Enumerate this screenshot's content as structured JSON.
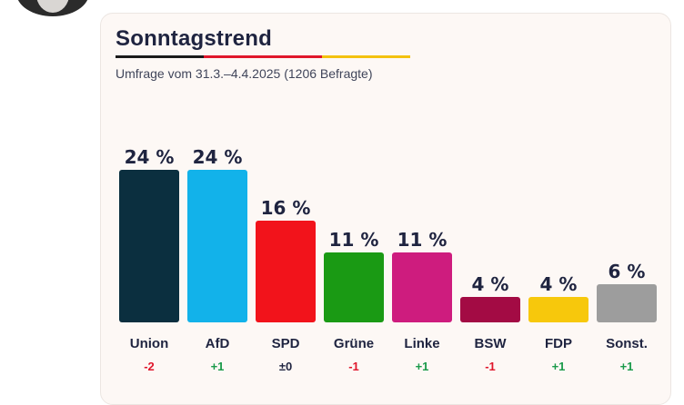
{
  "header": {
    "avatar_icon": "user-avatar-icon"
  },
  "card": {
    "title": "Sonntagstrend",
    "subtitle": "Umfrage vom 31.3.–4.4.2025 (1206 Befragte)"
  },
  "chart_data": {
    "type": "bar",
    "title": "Sonntagstrend",
    "subtitle": "Umfrage vom 31.3.–4.4.2025 (1206 Befragte)",
    "ylim": [
      0,
      24
    ],
    "grid": false,
    "categories": [
      "Union",
      "AfD",
      "SPD",
      "Grüne",
      "Linke",
      "BSW",
      "FDP",
      "Sonst."
    ],
    "values": [
      24,
      24,
      16,
      11,
      11,
      4,
      4,
      6
    ],
    "value_labels": [
      "24 %",
      "24 %",
      "16 %",
      "11 %",
      "11 %",
      "4 %",
      "4 %",
      "6 %"
    ],
    "changes": [
      "-2",
      "+1",
      "±0",
      "-1",
      "+1",
      "-1",
      "+1",
      "+1"
    ],
    "colors": [
      "#0b2f3f",
      "#12b2ea",
      "#f2131b",
      "#1a9a14",
      "#ce1c7e",
      "#a30b44",
      "#f7c80c",
      "#9d9d9d"
    ],
    "change_colors": {
      "negative": "#e0162b",
      "positive": "#1a9a4a",
      "neutral": "#1f2440"
    }
  }
}
